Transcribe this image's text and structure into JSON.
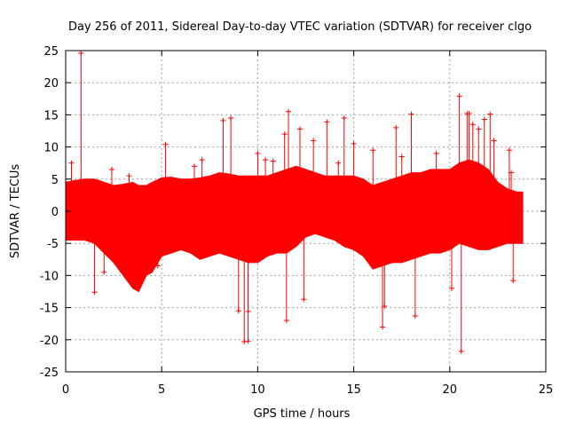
{
  "chart_data": {
    "type": "scatter",
    "title": "Day 256 of 2011, Sidereal Day-to-day VTEC variation (SDTVAR) for receiver clgo",
    "xlabel": "GPS time / hours",
    "ylabel": "SDTVAR / TECUs",
    "xlim": [
      0,
      25
    ],
    "ylim": [
      -25,
      25
    ],
    "xticks": [
      0,
      5,
      10,
      15,
      20,
      25
    ],
    "yticks": [
      -25,
      -20,
      -15,
      -10,
      -5,
      0,
      5,
      10,
      15,
      20,
      25
    ],
    "grid": true,
    "marker": "+",
    "color": "#ff0000",
    "series": [
      {
        "name": "SDTVAR",
        "band": {
          "x": [
            0.0,
            0.5,
            1.0,
            1.5,
            2.0,
            2.5,
            3.0,
            3.5,
            3.8,
            4.2,
            4.5,
            5.0,
            5.5,
            6.0,
            6.5,
            7.0,
            7.5,
            8.0,
            8.5,
            9.0,
            9.5,
            10.0,
            10.5,
            11.0,
            11.5,
            12.0,
            12.5,
            13.0,
            13.5,
            14.0,
            14.5,
            15.0,
            15.5,
            16.0,
            16.5,
            17.0,
            17.5,
            18.0,
            18.5,
            19.0,
            19.5,
            20.0,
            20.5,
            21.0,
            21.5,
            22.0,
            22.5,
            23.0,
            23.5,
            23.8
          ],
          "upper": [
            4.5,
            4.8,
            5.0,
            5.0,
            4.5,
            4.0,
            4.2,
            4.5,
            4.0,
            4.0,
            4.5,
            5.2,
            5.3,
            5.0,
            5.0,
            5.2,
            5.5,
            6.0,
            5.8,
            5.5,
            5.5,
            5.5,
            5.5,
            6.0,
            6.5,
            7.0,
            6.5,
            6.0,
            5.5,
            5.5,
            5.5,
            5.5,
            5.0,
            4.0,
            4.5,
            5.0,
            5.5,
            6.0,
            6.0,
            6.5,
            6.5,
            6.5,
            7.5,
            8.0,
            7.5,
            6.5,
            4.5,
            3.5,
            3.0,
            3.0
          ],
          "lower": [
            -4.5,
            -4.5,
            -4.5,
            -5.0,
            -6.5,
            -8.0,
            -10.0,
            -12.0,
            -12.5,
            -10.0,
            -9.5,
            -7.0,
            -6.5,
            -6.0,
            -6.5,
            -7.5,
            -7.0,
            -6.5,
            -7.0,
            -7.5,
            -8.0,
            -8.0,
            -7.0,
            -6.5,
            -6.5,
            -5.5,
            -4.0,
            -3.5,
            -4.0,
            -4.5,
            -5.5,
            -6.0,
            -7.0,
            -9.0,
            -8.5,
            -8.0,
            -8.0,
            -7.5,
            -7.0,
            -6.5,
            -6.5,
            -6.0,
            -5.0,
            -5.5,
            -6.0,
            -6.0,
            -5.5,
            -5.0,
            -5.0,
            -5.0
          ]
        },
        "outliers": {
          "x": [
            0.8,
            1.5,
            0.3,
            2.4,
            3.3,
            5.2,
            7.1,
            8.2,
            8.6,
            9.0,
            9.3,
            9.5,
            9.5,
            10.0,
            10.4,
            10.8,
            11.5,
            11.6,
            11.4,
            12.2,
            12.4,
            12.9,
            13.6,
            14.2,
            14.5,
            15.0,
            16.0,
            16.5,
            16.6,
            17.2,
            17.5,
            18.0,
            18.2,
            19.3,
            20.1,
            20.5,
            20.6,
            20.9,
            21.0,
            21.2,
            21.5,
            21.8,
            22.1,
            22.3,
            23.1,
            23.2,
            23.3,
            2.0,
            4.8,
            6.7
          ],
          "y": [
            24.6,
            -12.6,
            7.5,
            6.5,
            5.5,
            10.4,
            8.0,
            14.1,
            14.5,
            -15.5,
            -20.3,
            -15.6,
            -20.2,
            9.0,
            8.0,
            7.8,
            -17.0,
            15.5,
            12.0,
            12.8,
            -13.7,
            11.0,
            13.9,
            7.5,
            14.5,
            10.5,
            9.5,
            -18.0,
            -14.8,
            13.0,
            8.5,
            15.1,
            -16.3,
            9.0,
            -12.0,
            17.9,
            -21.8,
            15.2,
            15.2,
            13.5,
            12.8,
            14.3,
            15.1,
            11.0,
            9.5,
            6.0,
            -10.8,
            -9.5,
            -8.5,
            7.0
          ]
        }
      }
    ]
  }
}
